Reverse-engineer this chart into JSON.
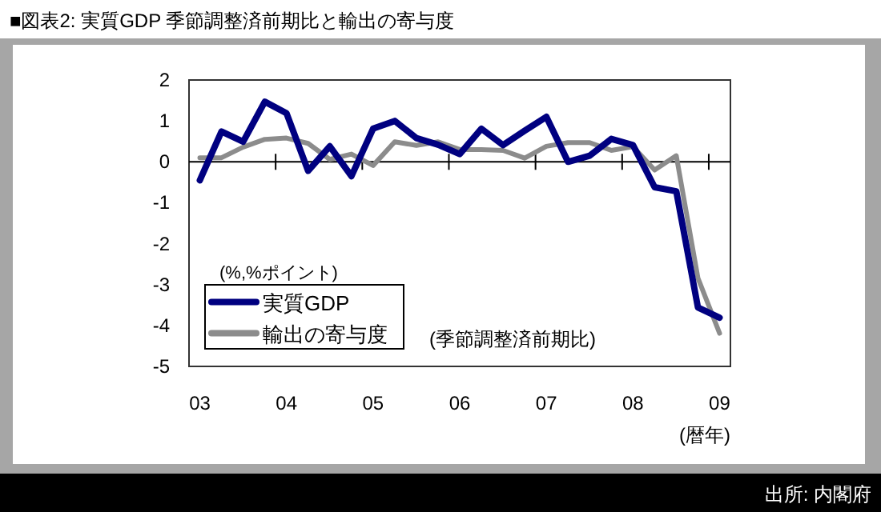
{
  "chart_data": {
    "type": "line",
    "title": "■図表2: 実質GDP 季節調整済前期比と輸出の寄与度",
    "categories": [
      "03",
      null,
      null,
      null,
      "04",
      null,
      null,
      null,
      "05",
      null,
      null,
      null,
      "06",
      null,
      null,
      null,
      "07",
      null,
      null,
      null,
      "08",
      null,
      null,
      null,
      "09"
    ],
    "series": [
      {
        "name": "実質GDP",
        "color": "#000080",
        "values": [
          -0.45,
          0.74,
          0.49,
          1.47,
          1.19,
          -0.22,
          0.38,
          -0.35,
          0.81,
          1.0,
          0.58,
          0.42,
          0.19,
          0.81,
          0.41,
          0.76,
          1.1,
          0.0,
          0.15,
          0.56,
          0.41,
          -0.62,
          -0.72,
          -3.56,
          -3.81
        ]
      },
      {
        "name": "輸出の寄与度",
        "color": "#8c8c8c",
        "values": [
          0.1,
          0.1,
          0.36,
          0.55,
          0.58,
          0.45,
          0.06,
          0.19,
          -0.09,
          0.49,
          0.4,
          0.49,
          0.3,
          0.3,
          0.28,
          0.09,
          0.38,
          0.47,
          0.47,
          0.28,
          0.37,
          -0.2,
          0.15,
          -2.84,
          -4.19
        ]
      }
    ],
    "ylabel": "(%,%ポイント)",
    "xlabel": "(暦年)",
    "ylim": [
      -5,
      2
    ],
    "yticks": [
      2,
      1,
      0,
      -1,
      -2,
      -3,
      -4,
      -5
    ],
    "ref_lines": [
      {
        "axis": "y",
        "value": 0,
        "label": null,
        "color": "#000000"
      }
    ],
    "annotations": [
      "(季節調整済前期比)",
      "出所: 内閣府"
    ],
    "legend": "bottom left",
    "grid": false,
    "marker": "none",
    "line_style": "solid"
  }
}
